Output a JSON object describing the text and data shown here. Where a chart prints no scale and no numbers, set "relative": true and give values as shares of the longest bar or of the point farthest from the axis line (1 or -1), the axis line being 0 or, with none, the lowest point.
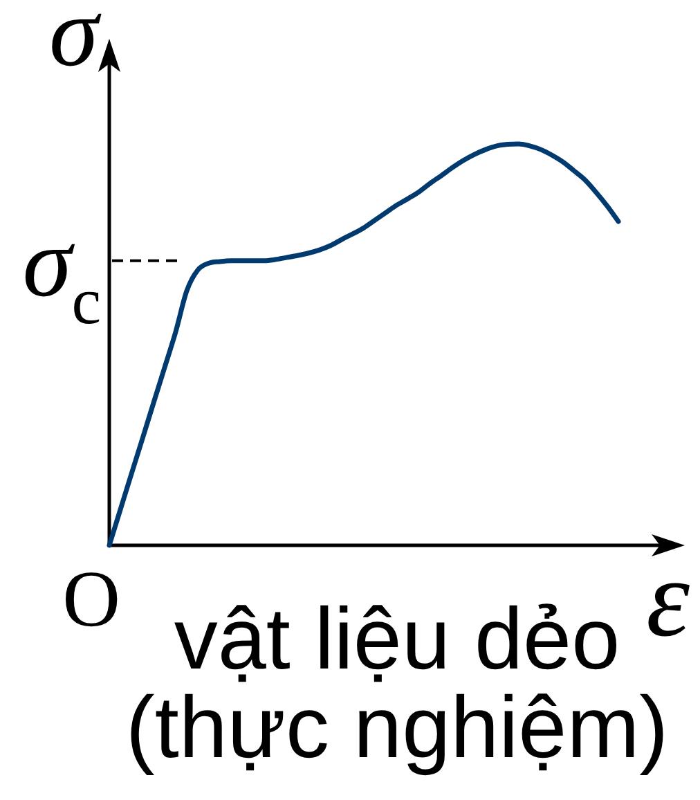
{
  "chart_data": {
    "type": "line",
    "relative": true,
    "tick_labels": false,
    "xlabel": "ε",
    "ylabel": "σ",
    "categories": [
      null,
      null,
      null,
      null,
      null,
      null,
      null,
      null,
      null,
      null,
      null,
      null,
      null,
      null,
      null,
      null,
      null,
      null,
      null,
      null,
      null,
      null,
      null,
      null,
      null,
      null,
      null,
      null,
      null,
      null,
      null,
      null,
      null,
      null,
      null,
      null,
      null,
      null,
      null,
      null,
      null,
      null,
      null,
      null,
      null,
      null,
      null
    ],
    "values": [
      0,
      0.089,
      0.178,
      0.266,
      0.355,
      0.443,
      0.532,
      0.634,
      0.686,
      0.703,
      0.707,
      0.709,
      0.709,
      0.709,
      0.709,
      0.712,
      0.717,
      0.722,
      0.728,
      0.736,
      0.747,
      0.762,
      0.776,
      0.791,
      0.81,
      0.829,
      0.848,
      0.864,
      0.881,
      0.902,
      0.921,
      0.941,
      0.959,
      0.974,
      0.986,
      0.995,
      0.999,
      1,
      0.995,
      0.986,
      0.972,
      0.955,
      0.933,
      0.91,
      0.879,
      0.845,
      0.807
    ],
    "color": "#003a6e",
    "ref_lines": [
      {
        "axis": "y",
        "value": 0.709,
        "label": "σ$_{c}$",
        "color": "#000000",
        "line_style": "dashed"
      }
    ],
    "annotations": [
      "O",
      "vật liệu dẻo",
      "(thực nghiệm)"
    ]
  }
}
